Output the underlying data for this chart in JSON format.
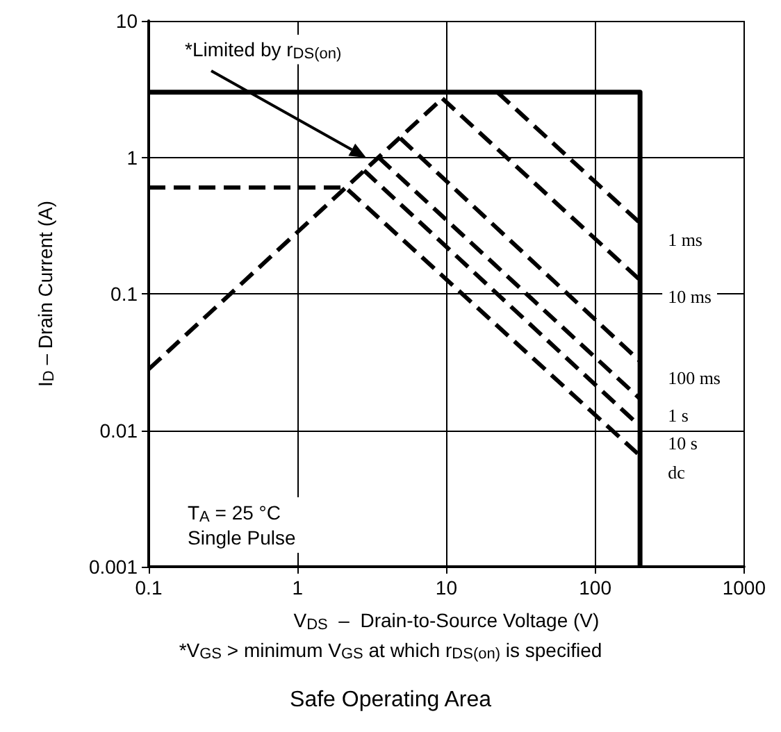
{
  "chart_data": {
    "type": "line",
    "title": "Safe Operating Area",
    "xlabel": "V$_{DS}$  –  Drain-to-Source Voltage (V)",
    "ylabel": "I$_{D}$ – Drain Current (A)",
    "log": "xy",
    "xlim": [
      0.1,
      1000
    ],
    "ylim": [
      0.001,
      10
    ],
    "xticks": [
      0.1,
      1,
      10,
      100,
      1000
    ],
    "yticks": [
      0.001,
      0.01,
      0.1,
      1,
      10
    ],
    "grid": true,
    "legend": false,
    "marker": "none",
    "series": [
      {
        "color": "#000000",
        "line_style": "dashed",
        "x": [
          0.1,
          9.4
        ],
        "values": [
          0.028,
          2.7
        ]
      },
      {
        "color": "#000000",
        "line_style": "solid",
        "x": [
          0.1,
          200,
          200
        ],
        "values": [
          3,
          3,
          0.001
        ]
      },
      {
        "name": "1 ms",
        "color": "#000000",
        "line_style": "dashed",
        "x": [
          22,
          200
        ],
        "values": [
          3,
          0.33
        ]
      },
      {
        "name": "10 ms",
        "color": "#000000",
        "line_style": "dashed",
        "x": [
          9.4,
          200
        ],
        "values": [
          2.7,
          0.126
        ]
      },
      {
        "name": "100 ms",
        "color": "#000000",
        "line_style": "dashed",
        "x": [
          4.9,
          200
        ],
        "values": [
          1.38,
          0.032
        ]
      },
      {
        "name": "1 s",
        "color": "#000000",
        "line_style": "dashed",
        "x": [
          3.5,
          200
        ],
        "values": [
          1.0,
          0.017
        ]
      },
      {
        "name": "10 s",
        "color": "#000000",
        "line_style": "dashed",
        "x": [
          2.8,
          200
        ],
        "values": [
          0.8,
          0.0107
        ]
      },
      {
        "name": "dc",
        "color": "#000000",
        "line_style": "dashed",
        "x": [
          0.1,
          2.1,
          200
        ],
        "values": [
          0.6,
          0.6,
          0.0065
        ]
      }
    ],
    "annotations": [
      "*Limited by r$_{DS(on)}$",
      "T$_{A}$ = 25 °C",
      "Single Pulse",
      "*V$_{GS}$ > minimum V$_{GS}$ at which r$_{DS(on)}$ is specified"
    ]
  }
}
